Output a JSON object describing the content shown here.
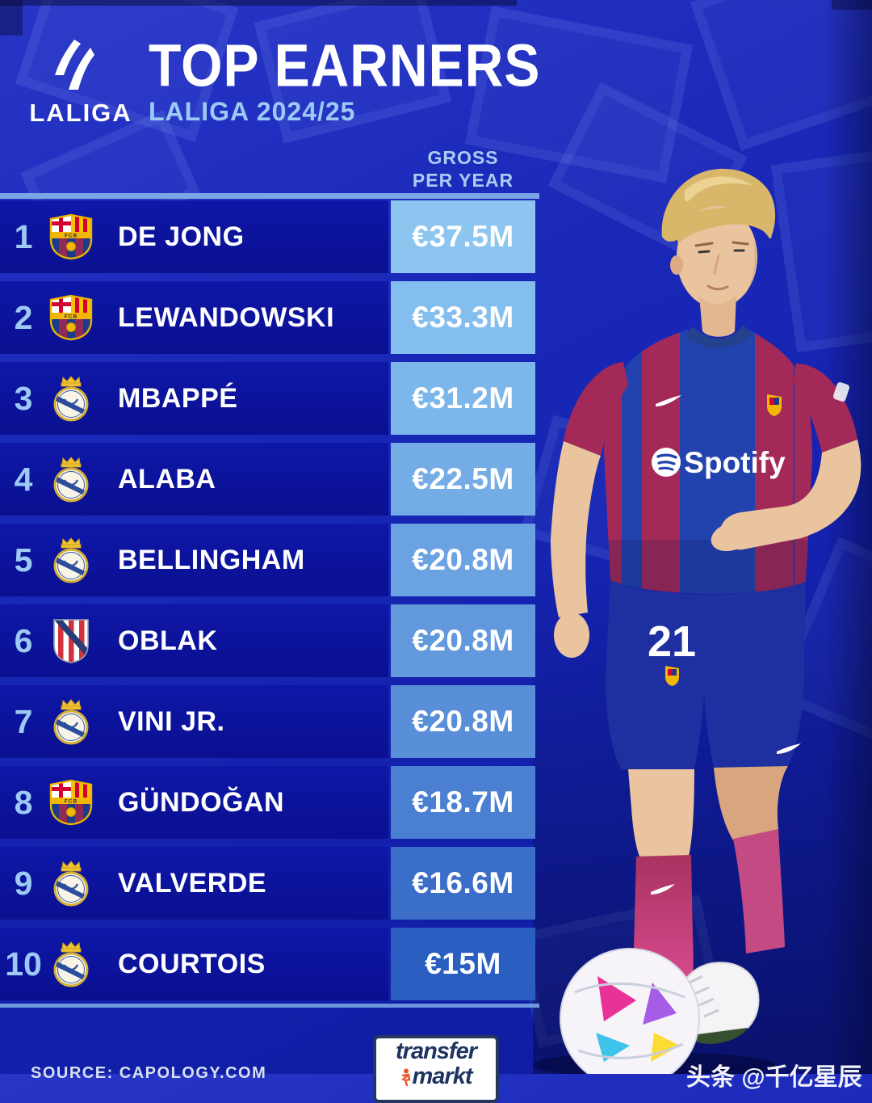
{
  "header": {
    "brand": "LALIGA",
    "title": "TOP EARNERS",
    "subtitle": "LALIGA 2024/25",
    "value_col_line1": "GROSS",
    "value_col_line2": "PER YEAR"
  },
  "table": {
    "rows": [
      {
        "rank": "1",
        "club": "fc-barcelona",
        "player": "DE JONG",
        "salary": "€37.5M",
        "value_bg": "#8cc6f0"
      },
      {
        "rank": "2",
        "club": "fc-barcelona",
        "player": "LEWANDOWSKI",
        "salary": "€33.3M",
        "value_bg": "#84beee"
      },
      {
        "rank": "3",
        "club": "real-madrid",
        "player": "MBAPPÉ",
        "salary": "€31.2M",
        "value_bg": "#7cb6ea"
      },
      {
        "rank": "4",
        "club": "real-madrid",
        "player": "ALABA",
        "salary": "€22.5M",
        "value_bg": "#74ace6"
      },
      {
        "rank": "5",
        "club": "real-madrid",
        "player": "BELLINGHAM",
        "salary": "€20.8M",
        "value_bg": "#6ba3e2"
      },
      {
        "rank": "6",
        "club": "atletico-madrid",
        "player": "OBLAK",
        "salary": "€20.8M",
        "value_bg": "#6299dd"
      },
      {
        "rank": "7",
        "club": "real-madrid",
        "player": "VINI JR.",
        "salary": "€20.8M",
        "value_bg": "#598ed8"
      },
      {
        "rank": "8",
        "club": "fc-barcelona",
        "player": "GÜNDOĞAN",
        "salary": "€18.7M",
        "value_bg": "#4a7fd1"
      },
      {
        "rank": "9",
        "club": "real-madrid",
        "player": "VALVERDE",
        "salary": "€16.6M",
        "value_bg": "#3a6ec9"
      },
      {
        "rank": "10",
        "club": "real-madrid",
        "player": "COURTOIS",
        "salary": "€15M",
        "value_bg": "#2a5ec1"
      }
    ]
  },
  "player_graphic": {
    "shirt_number": "21",
    "sponsor": "Spotify"
  },
  "footer": {
    "source": "SOURCE: CAPOLOGY.COM",
    "logo_top": "transfer",
    "logo_bottom": "markt",
    "watermark": "头条 @千亿星辰"
  },
  "colors": {
    "background": "#1726b6",
    "row_bg": "#0c13a0",
    "rank_text": "#9dc9f4",
    "subtitle_text": "#9ccaf6",
    "divider": "#7aa6e6",
    "barca_garnet": "#a32a58",
    "barca_blue": "#2243ae",
    "value_text": "#ffffff"
  }
}
